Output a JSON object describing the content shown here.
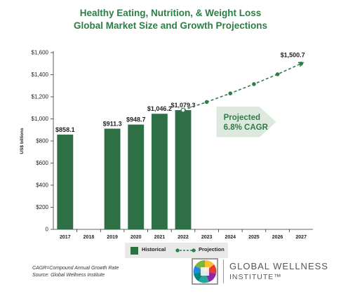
{
  "chart_data": {
    "type": "bar",
    "title_line1": "Healthy Eating, Nutrition, & Weight Loss",
    "title_line2": "Global Market Size and Growth Projections",
    "ylabel": "US$ billions",
    "ylim": [
      0,
      1600
    ],
    "yticks": [
      "$1,600",
      "$1,400",
      "$1,200",
      "$1,000",
      "$800",
      "$600",
      "$400",
      "$200",
      "0"
    ],
    "ytick_values": [
      1600,
      1400,
      1200,
      1000,
      800,
      600,
      400,
      200,
      0
    ],
    "categories": [
      "2017",
      "2018",
      "2019",
      "2020",
      "2021",
      "2022",
      "2023",
      "2024",
      "2025",
      "2026",
      "2027"
    ],
    "series": [
      {
        "name": "Historical",
        "type": "bar",
        "color": "#2e6f46",
        "values": [
          858.1,
          null,
          911.3,
          948.7,
          1046.2,
          1079.3,
          null,
          null,
          null,
          null,
          null
        ],
        "labels": [
          "$858.1",
          "",
          "$911.3",
          "$948.7",
          "$1,046.2",
          "$1,079.3",
          "",
          "",
          "",
          "",
          ""
        ]
      },
      {
        "name": "Projection",
        "type": "line",
        "color": "#2e7d46",
        "x": [
          "2022",
          "2023",
          "2024",
          "2025",
          "2026",
          "2027"
        ],
        "values": [
          1079.3,
          1153,
          1231,
          1315,
          1404,
          1500.7
        ],
        "end_label": "$1,500.7"
      }
    ],
    "annotation": {
      "line1": "Projected",
      "line2": "6.8% CAGR"
    },
    "legend_position": "bottom",
    "grid": false
  },
  "notes": {
    "line1": "CAGR=Compound Annual Growth Rate",
    "line2": "Source: Global Wellness Institute"
  },
  "logo": {
    "line1": "GLOBAL WELLNESS",
    "line2": "INSTITUTE™"
  },
  "colors": {
    "bar": "#2e6f46",
    "title": "#2e7d46",
    "arrow": "#dde9dc",
    "arrow_text": "#2e7d46"
  }
}
